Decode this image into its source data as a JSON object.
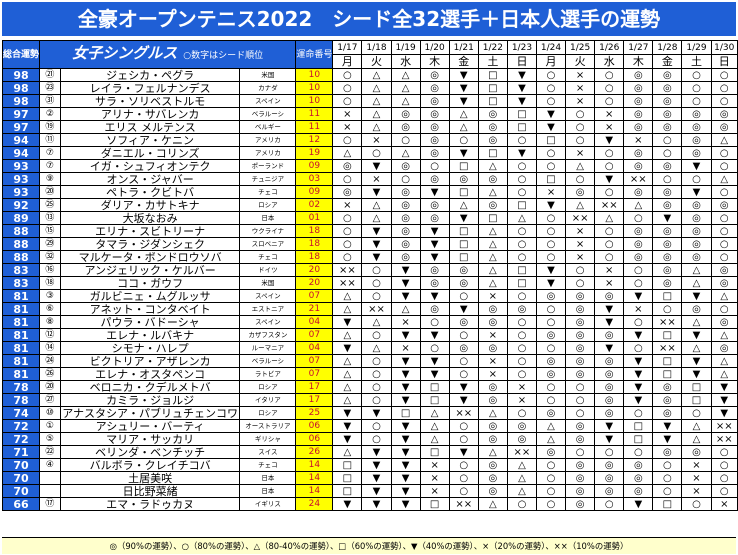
{
  "title": "全豪オープンテニス2022　シード全32選手＋日本人選手の運勢",
  "header": {
    "score_label": "総合運勢",
    "section_title": "女子シングルス",
    "section_note": "○数字はシード順位",
    "rank_label": "運命番号",
    "dates": [
      "1/17",
      "1/18",
      "1/19",
      "1/20",
      "1/21",
      "1/22",
      "1/23",
      "1/24",
      "1/25",
      "1/26",
      "1/27",
      "1/28",
      "1/29",
      "1/30"
    ],
    "weekdays": [
      "月",
      "火",
      "水",
      "木",
      "金",
      "土",
      "日",
      "月",
      "火",
      "水",
      "木",
      "金",
      "土",
      "日"
    ]
  },
  "colors": {
    "banner": "#1f5fd6",
    "highlight": "#ffff00",
    "rank_text": "#c8102e",
    "legend_bg": "#ffffcc"
  },
  "players": [
    {
      "score": "98",
      "seed": "㉑",
      "name": "ジェシカ・ペグラ",
      "nation": "米国",
      "rank": "10",
      "marks": [
        "○",
        "△",
        "△",
        "◎",
        "▼",
        "□",
        "▼",
        "○",
        "×",
        "○",
        "◎",
        "◎",
        "○",
        "○"
      ]
    },
    {
      "score": "98",
      "seed": "㉓",
      "name": "レイラ・フェルナンデス",
      "nation": "カナダ",
      "rank": "10",
      "marks": [
        "○",
        "△",
        "△",
        "◎",
        "▼",
        "□",
        "▼",
        "○",
        "×",
        "○",
        "◎",
        "◎",
        "○",
        "○"
      ]
    },
    {
      "score": "98",
      "seed": "㉛",
      "name": "サラ・ソリベストルモ",
      "nation": "スペイン",
      "rank": "10",
      "marks": [
        "○",
        "△",
        "△",
        "◎",
        "▼",
        "□",
        "▼",
        "○",
        "×",
        "○",
        "◎",
        "◎",
        "○",
        "○"
      ]
    },
    {
      "score": "97",
      "seed": "②",
      "name": "アリナ・サバレンカ",
      "nation": "ベラルーシ",
      "rank": "11",
      "marks": [
        "×",
        "△",
        "◎",
        "◎",
        "△",
        "◎",
        "□",
        "▼",
        "○",
        "×",
        "◎",
        "◎",
        "◎",
        "◎"
      ]
    },
    {
      "score": "97",
      "seed": "⑲",
      "name": "エリス メルテンス",
      "nation": "ベルギー",
      "rank": "11",
      "marks": [
        "×",
        "△",
        "◎",
        "◎",
        "△",
        "◎",
        "□",
        "▼",
        "○",
        "×",
        "◎",
        "◎",
        "◎",
        "◎"
      ]
    },
    {
      "score": "94",
      "seed": "⑪",
      "name": "ソフィア・ケニン",
      "nation": "アメリカ",
      "rank": "12",
      "marks": [
        "○",
        "×",
        "○",
        "◎",
        "○",
        "◎",
        "○",
        "□",
        "○",
        "▼",
        "×",
        "○",
        "◎",
        "△"
      ]
    },
    {
      "score": "94",
      "seed": "⑦",
      "name": "ダニエル・コリンズ",
      "nation": "アメリカ",
      "rank": "19",
      "marks": [
        "△",
        "○",
        "△",
        "◎",
        "▼",
        "□",
        "▼",
        "○",
        "×",
        "○",
        "◎",
        "○",
        "◎",
        "○"
      ]
    },
    {
      "score": "93",
      "seed": "⑦",
      "name": "イガ・シュフィオンテク",
      "nation": "ポーランド",
      "rank": "09",
      "marks": [
        "◎",
        "▼",
        "◎",
        "○",
        "□",
        "△",
        "○",
        "○",
        "△",
        "○",
        "◎",
        "◎",
        "▼",
        "○"
      ]
    },
    {
      "score": "93",
      "seed": "⑨",
      "name": "オンス・ジャバー",
      "nation": "チュニジア",
      "rank": "03",
      "marks": [
        "○",
        "×",
        "○",
        "◎",
        "◎",
        "◎",
        "○",
        "□",
        "○",
        "▼",
        "××",
        "○",
        "○",
        "△"
      ]
    },
    {
      "score": "93",
      "seed": "⑳",
      "name": "ペトラ・クビトバ",
      "nation": "チェコ",
      "rank": "09",
      "marks": [
        "◎",
        "▼",
        "◎",
        "▼",
        "□",
        "△",
        "○",
        "×",
        "◎",
        "○",
        "◎",
        "◎",
        "▼",
        "○"
      ]
    },
    {
      "score": "92",
      "seed": "㉕",
      "name": "ダリア・カサトキナ",
      "nation": "ロシア",
      "rank": "02",
      "marks": [
        "×",
        "△",
        "◎",
        "◎",
        "△",
        "◎",
        "□",
        "▼",
        "△",
        "××",
        "△",
        "◎",
        "◎",
        "◎"
      ]
    },
    {
      "score": "89",
      "seed": "⑬",
      "name": "大坂なおみ",
      "nation": "日本",
      "rank": "01",
      "marks": [
        "○",
        "△",
        "◎",
        "◎",
        "▼",
        "□",
        "△",
        "○",
        "××",
        "△",
        "○",
        "▼",
        "◎",
        "○"
      ]
    },
    {
      "score": "88",
      "seed": "⑮",
      "name": "エリナ・スビトリーナ",
      "nation": "ウクライナ",
      "rank": "18",
      "marks": [
        "○",
        "▼",
        "◎",
        "▼",
        "□",
        "△",
        "○",
        "○",
        "×",
        "○",
        "◎",
        "◎",
        "◎",
        "○"
      ]
    },
    {
      "score": "88",
      "seed": "㉙",
      "name": "タマラ・ジダンシェク",
      "nation": "スロベニア",
      "rank": "18",
      "marks": [
        "○",
        "▼",
        "◎",
        "▼",
        "□",
        "△",
        "○",
        "○",
        "×",
        "○",
        "◎",
        "◎",
        "◎",
        "○"
      ]
    },
    {
      "score": "88",
      "seed": "㉜",
      "name": "マルケータ・ボンドロウソバ",
      "nation": "チェコ",
      "rank": "18",
      "marks": [
        "○",
        "▼",
        "◎",
        "▼",
        "□",
        "△",
        "○",
        "○",
        "×",
        "○",
        "◎",
        "◎",
        "◎",
        "○"
      ]
    },
    {
      "score": "83",
      "seed": "⑯",
      "name": "アンジェリック・ケルバー",
      "nation": "ドイツ",
      "rank": "20",
      "marks": [
        "××",
        "○",
        "▼",
        "◎",
        "◎",
        "△",
        "□",
        "▼",
        "○",
        "×",
        "○",
        "◎",
        "△",
        "◎"
      ]
    },
    {
      "score": "83",
      "seed": "⑱",
      "name": "ココ・ガウフ",
      "nation": "米国",
      "rank": "20",
      "marks": [
        "××",
        "○",
        "▼",
        "◎",
        "◎",
        "△",
        "□",
        "▼",
        "○",
        "×",
        "○",
        "◎",
        "△",
        "◎"
      ]
    },
    {
      "score": "81",
      "seed": "③",
      "name": "ガルビニェ・ムグルッサ",
      "nation": "スペイン",
      "rank": "07",
      "marks": [
        "△",
        "○",
        "▼",
        "▼",
        "○",
        "×",
        "○",
        "◎",
        "◎",
        "◎",
        "▼",
        "□",
        "▼",
        "△"
      ]
    },
    {
      "score": "81",
      "seed": "⑥",
      "name": "アネット・コンタベイト",
      "nation": "エストニア",
      "rank": "21",
      "marks": [
        "△",
        "××",
        "△",
        "◎",
        "▼",
        "◎",
        "◎",
        "○",
        "◎",
        "▼",
        "×",
        "○",
        "◎",
        "○"
      ]
    },
    {
      "score": "81",
      "seed": "⑧",
      "name": "パウラ・バドーシャ",
      "nation": "スペイン",
      "rank": "04",
      "marks": [
        "▼",
        "△",
        "×",
        "○",
        "◎",
        "◎",
        "○",
        "○",
        "◎",
        "▼",
        "○",
        "××",
        "△",
        "◎"
      ]
    },
    {
      "score": "81",
      "seed": "⑫",
      "name": "エレナ・ルバキナ",
      "nation": "カザフスタン",
      "rank": "07",
      "marks": [
        "△",
        "○",
        "▼",
        "▼",
        "○",
        "×",
        "○",
        "◎",
        "◎",
        "◎",
        "▼",
        "□",
        "▼",
        "△"
      ]
    },
    {
      "score": "81",
      "seed": "⑭",
      "name": "シモナ・ハレプ",
      "nation": "ルーマニア",
      "rank": "04",
      "marks": [
        "▼",
        "△",
        "×",
        "○",
        "◎",
        "◎",
        "○",
        "○",
        "◎",
        "▼",
        "○",
        "××",
        "△",
        "◎"
      ]
    },
    {
      "score": "81",
      "seed": "㉔",
      "name": "ビクトリア・アザレンカ",
      "nation": "ベラルーシ",
      "rank": "07",
      "marks": [
        "△",
        "○",
        "▼",
        "▼",
        "○",
        "×",
        "○",
        "◎",
        "◎",
        "◎",
        "▼",
        "□",
        "▼",
        "△"
      ]
    },
    {
      "score": "81",
      "seed": "㉖",
      "name": "エレナ・オスタペンコ",
      "nation": "ラトビア",
      "rank": "07",
      "marks": [
        "△",
        "○",
        "▼",
        "▼",
        "○",
        "×",
        "○",
        "◎",
        "◎",
        "◎",
        "▼",
        "□",
        "▼",
        "△"
      ]
    },
    {
      "score": "78",
      "seed": "⑳",
      "name": "ベロニカ・クデルメトバ",
      "nation": "ロシア",
      "rank": "17",
      "marks": [
        "△",
        "○",
        "▼",
        "□",
        "▼",
        "◎",
        "×",
        "○",
        "○",
        "◎",
        "▼",
        "◎",
        "□",
        "▼"
      ]
    },
    {
      "score": "78",
      "seed": "㉗",
      "name": "カミラ・ジョルジ",
      "nation": "イタリア",
      "rank": "17",
      "marks": [
        "△",
        "○",
        "▼",
        "□",
        "▼",
        "◎",
        "×",
        "○",
        "○",
        "◎",
        "▼",
        "◎",
        "□",
        "▼"
      ]
    },
    {
      "score": "74",
      "seed": "⑩",
      "name": "アナスタシア・パブリュチェンコワ",
      "nation": "ロシア",
      "rank": "25",
      "marks": [
        "▼",
        "▼",
        "□",
        "△",
        "××",
        "△",
        "○",
        "◎",
        "○",
        "◎",
        "○",
        "◎",
        "○",
        "▼"
      ]
    },
    {
      "score": "72",
      "seed": "①",
      "name": "アシュリー・バーティ",
      "nation": "オーストラリア",
      "rank": "06",
      "marks": [
        "▼",
        "○",
        "▼",
        "△",
        "○",
        "◎",
        "◎",
        "△",
        "◎",
        "▼",
        "□",
        "▼",
        "△",
        "××"
      ]
    },
    {
      "score": "72",
      "seed": "⑤",
      "name": "マリア・サッカリ",
      "nation": "ギリシャ",
      "rank": "06",
      "marks": [
        "▼",
        "○",
        "▼",
        "△",
        "○",
        "◎",
        "◎",
        "△",
        "◎",
        "▼",
        "□",
        "▼",
        "△",
        "××"
      ]
    },
    {
      "score": "71",
      "seed": "㉒",
      "name": "ベリンダ・ベンチッチ",
      "nation": "スイス",
      "rank": "26",
      "marks": [
        "△",
        "▼",
        "▼",
        "□",
        "▼",
        "△",
        "××",
        "◎",
        "○",
        "○",
        "○",
        "◎",
        "◎",
        "○"
      ]
    },
    {
      "score": "70",
      "seed": "④",
      "name": "バルボラ・クレイチコバ",
      "nation": "チェコ",
      "rank": "14",
      "marks": [
        "□",
        "▼",
        "▼",
        "×",
        "○",
        "◎",
        "△",
        "○",
        "◎",
        "◎",
        "◎",
        "○",
        "×",
        "○"
      ]
    },
    {
      "score": "70",
      "seed": "",
      "name": "土居美咲",
      "nation": "日本",
      "rank": "14",
      "marks": [
        "□",
        "▼",
        "▼",
        "×",
        "○",
        "◎",
        "△",
        "○",
        "◎",
        "◎",
        "◎",
        "○",
        "×",
        "○"
      ]
    },
    {
      "score": "70",
      "seed": "",
      "name": "日比野菜緒",
      "nation": "日本",
      "rank": "14",
      "marks": [
        "□",
        "▼",
        "▼",
        "×",
        "○",
        "◎",
        "△",
        "○",
        "◎",
        "◎",
        "◎",
        "○",
        "×",
        "○"
      ]
    },
    {
      "score": "66",
      "seed": "⑰",
      "name": "エマ・ラドゥカヌ",
      "nation": "イギリス",
      "rank": "24",
      "marks": [
        "▼",
        "▼",
        "▼",
        "□",
        "××",
        "△",
        "○",
        "○",
        "◎",
        "○",
        "▼",
        "□",
        "○",
        "×"
      ]
    }
  ],
  "legend": "◎（90%の運勢）、○（80%の運勢）、△（80-40%の運勢）、□（60%の運勢）、▼（40%の運勢）、×（20%の運勢）、××（10%の運勢）"
}
